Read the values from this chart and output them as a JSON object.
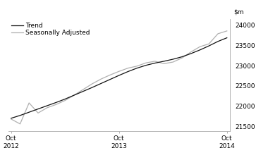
{
  "trend": [
    21700,
    21770,
    21850,
    21930,
    22010,
    22090,
    22175,
    22270,
    22365,
    22460,
    22560,
    22660,
    22760,
    22855,
    22940,
    23010,
    23065,
    23110,
    23160,
    23220,
    23300,
    23390,
    23490,
    23600,
    23690
  ],
  "seasonal": [
    21680,
    21560,
    22080,
    21830,
    21960,
    22040,
    22140,
    22270,
    22410,
    22550,
    22670,
    22770,
    22860,
    22940,
    22990,
    23070,
    23110,
    23050,
    23090,
    23190,
    23340,
    23470,
    23540,
    23790,
    23860
  ],
  "months": [
    0,
    1,
    2,
    3,
    4,
    5,
    6,
    7,
    8,
    9,
    10,
    11,
    12,
    13,
    14,
    15,
    16,
    17,
    18,
    19,
    20,
    21,
    22,
    23,
    24
  ],
  "xtick_positions": [
    0,
    12,
    24
  ],
  "xtick_labels": [
    "Oct\n2012",
    "Oct\n2013",
    "Oct\n2014"
  ],
  "ytick_positions": [
    21500,
    22000,
    22500,
    23000,
    23500,
    24000
  ],
  "ytick_labels": [
    "21500",
    "22000",
    "22500",
    "23000",
    "23500",
    "24000"
  ],
  "ylim": [
    21380,
    24150
  ],
  "xlim": [
    -0.3,
    24.3
  ],
  "trend_color": "#111111",
  "seasonal_color": "#b0b0b0",
  "trend_label": "Trend",
  "seasonal_label": "Seasonally Adjusted",
  "trend_linewidth": 0.9,
  "seasonal_linewidth": 0.9,
  "bg_color": "#ffffff",
  "legend_fontsize": 6.5,
  "tick_fontsize": 6.5,
  "ylabel_fontsize": 6.5
}
